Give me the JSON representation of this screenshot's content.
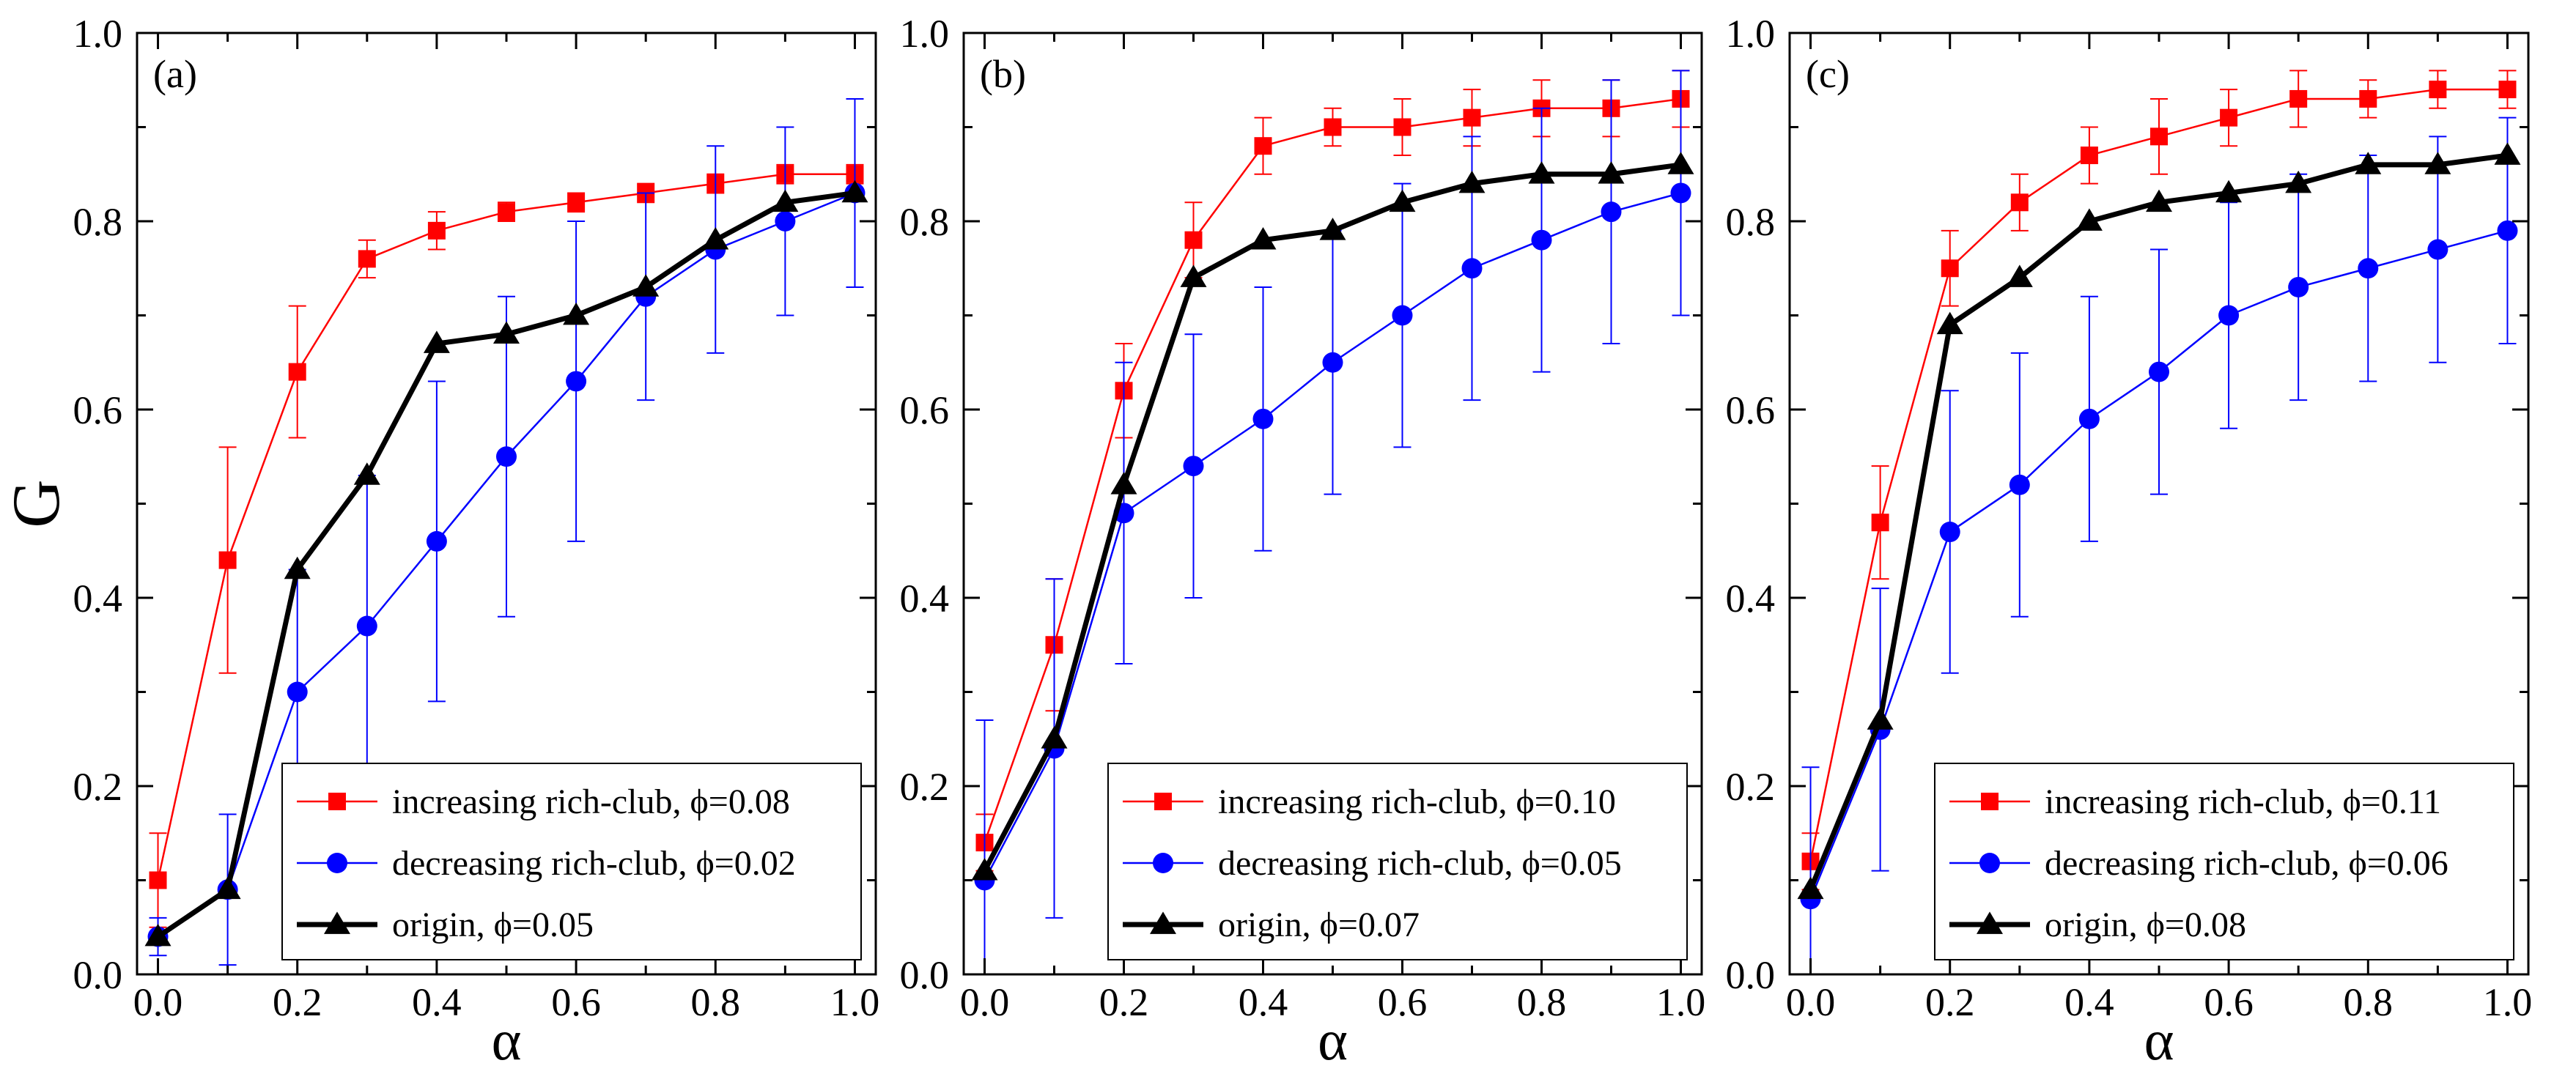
{
  "colors": {
    "increasing": "#ff0000",
    "decreasing": "#0000ff",
    "origin": "#000000",
    "axes": "#000000",
    "background": "#ffffff"
  },
  "chart_data": [
    {
      "type": "line",
      "panel_label": "(a)",
      "xlabel": "α",
      "ylabel": "G",
      "xlim": [
        -0.03,
        1.03
      ],
      "ylim": [
        0.0,
        1.0
      ],
      "xticks": [
        0.0,
        0.2,
        0.4,
        0.6,
        0.8,
        1.0
      ],
      "xtick_labels": [
        "0.0",
        "0.2",
        "0.4",
        "0.6",
        "0.8",
        "1.0"
      ],
      "yticks": [
        0.0,
        0.2,
        0.4,
        0.6,
        0.8,
        1.0
      ],
      "ytick_labels": [
        "0.0",
        "0.2",
        "0.4",
        "0.6",
        "0.8",
        "1.0"
      ],
      "grid": false,
      "legend_position": "bottom-right",
      "x": [
        0.0,
        0.1,
        0.2,
        0.3,
        0.4,
        0.5,
        0.6,
        0.7,
        0.8,
        0.9,
        1.0
      ],
      "series": [
        {
          "key": "increasing",
          "name": "increasing rich-club, ϕ=0.08",
          "marker": "square",
          "values": [
            0.1,
            0.44,
            0.64,
            0.76,
            0.79,
            0.81,
            0.82,
            0.83,
            0.84,
            0.85,
            0.85
          ],
          "errors": [
            0.05,
            0.12,
            0.07,
            0.02,
            0.02,
            0.01,
            0.01,
            0.01,
            0.01,
            0.01,
            0.01
          ]
        },
        {
          "key": "decreasing",
          "name": "decreasing rich-club, ϕ=0.02",
          "marker": "circle",
          "values": [
            0.04,
            0.09,
            0.3,
            0.37,
            0.46,
            0.55,
            0.63,
            0.72,
            0.77,
            0.8,
            0.83
          ],
          "errors": [
            0.02,
            0.08,
            0.13,
            0.16,
            0.17,
            0.17,
            0.17,
            0.11,
            0.11,
            0.1,
            0.1
          ]
        },
        {
          "key": "origin",
          "name": "origin, ϕ=0.05",
          "marker": "triangle",
          "values": [
            0.04,
            0.09,
            0.43,
            0.53,
            0.67,
            0.68,
            0.7,
            0.73,
            0.78,
            0.82,
            0.83
          ],
          "errors": null
        }
      ]
    },
    {
      "type": "line",
      "panel_label": "(b)",
      "xlabel": "α",
      "ylabel": "",
      "xlim": [
        -0.03,
        1.03
      ],
      "ylim": [
        0.0,
        1.0
      ],
      "xticks": [
        0.0,
        0.2,
        0.4,
        0.6,
        0.8,
        1.0
      ],
      "xtick_labels": [
        "0.0",
        "0.2",
        "0.4",
        "0.6",
        "0.8",
        "1.0"
      ],
      "yticks": [
        0.0,
        0.2,
        0.4,
        0.6,
        0.8,
        1.0
      ],
      "ytick_labels": [
        "0.0",
        "0.2",
        "0.4",
        "0.6",
        "0.8",
        "1.0"
      ],
      "grid": false,
      "legend_position": "bottom-right",
      "x": [
        0.0,
        0.1,
        0.2,
        0.3,
        0.4,
        0.5,
        0.6,
        0.7,
        0.8,
        0.9,
        1.0
      ],
      "series": [
        {
          "key": "increasing",
          "name": "increasing rich-club, ϕ=0.10",
          "marker": "square",
          "values": [
            0.14,
            0.35,
            0.62,
            0.78,
            0.88,
            0.9,
            0.9,
            0.91,
            0.92,
            0.92,
            0.93
          ],
          "errors": [
            0.03,
            0.07,
            0.05,
            0.04,
            0.03,
            0.02,
            0.03,
            0.03,
            0.03,
            0.03,
            0.03
          ]
        },
        {
          "key": "decreasing",
          "name": "decreasing rich-club, ϕ=0.05",
          "marker": "circle",
          "values": [
            0.1,
            0.24,
            0.49,
            0.54,
            0.59,
            0.65,
            0.7,
            0.75,
            0.78,
            0.81,
            0.83
          ],
          "errors": [
            0.17,
            0.18,
            0.16,
            0.14,
            0.14,
            0.14,
            0.14,
            0.14,
            0.14,
            0.14,
            0.13
          ]
        },
        {
          "key": "origin",
          "name": "origin, ϕ=0.07",
          "marker": "triangle",
          "values": [
            0.11,
            0.25,
            0.52,
            0.74,
            0.78,
            0.79,
            0.82,
            0.84,
            0.85,
            0.85,
            0.86
          ],
          "errors": null
        }
      ]
    },
    {
      "type": "line",
      "panel_label": "(c)",
      "xlabel": "α",
      "ylabel": "",
      "xlim": [
        -0.03,
        1.03
      ],
      "ylim": [
        0.0,
        1.0
      ],
      "xticks": [
        0.0,
        0.2,
        0.4,
        0.6,
        0.8,
        1.0
      ],
      "xtick_labels": [
        "0.0",
        "0.2",
        "0.4",
        "0.6",
        "0.8",
        "1.0"
      ],
      "yticks": [
        0.0,
        0.2,
        0.4,
        0.6,
        0.8,
        1.0
      ],
      "ytick_labels": [
        "0.0",
        "0.2",
        "0.4",
        "0.6",
        "0.8",
        "1.0"
      ],
      "grid": false,
      "legend_position": "bottom-right",
      "x": [
        0.0,
        0.1,
        0.2,
        0.3,
        0.4,
        0.5,
        0.6,
        0.7,
        0.8,
        0.9,
        1.0
      ],
      "series": [
        {
          "key": "increasing",
          "name": "increasing rich-club, ϕ=0.11",
          "marker": "square",
          "values": [
            0.12,
            0.48,
            0.75,
            0.82,
            0.87,
            0.89,
            0.91,
            0.93,
            0.93,
            0.94,
            0.94
          ],
          "errors": [
            0.03,
            0.06,
            0.04,
            0.03,
            0.03,
            0.04,
            0.03,
            0.03,
            0.02,
            0.02,
            0.02
          ]
        },
        {
          "key": "decreasing",
          "name": "decreasing rich-club, ϕ=0.06",
          "marker": "circle",
          "values": [
            0.08,
            0.26,
            0.47,
            0.52,
            0.59,
            0.64,
            0.7,
            0.73,
            0.75,
            0.77,
            0.79
          ],
          "errors": [
            0.14,
            0.15,
            0.15,
            0.14,
            0.13,
            0.13,
            0.12,
            0.12,
            0.12,
            0.12,
            0.12
          ]
        },
        {
          "key": "origin",
          "name": "origin, ϕ=0.08",
          "marker": "triangle",
          "values": [
            0.09,
            0.27,
            0.69,
            0.74,
            0.8,
            0.82,
            0.83,
            0.84,
            0.86,
            0.86,
            0.87
          ],
          "errors": null
        }
      ]
    }
  ]
}
